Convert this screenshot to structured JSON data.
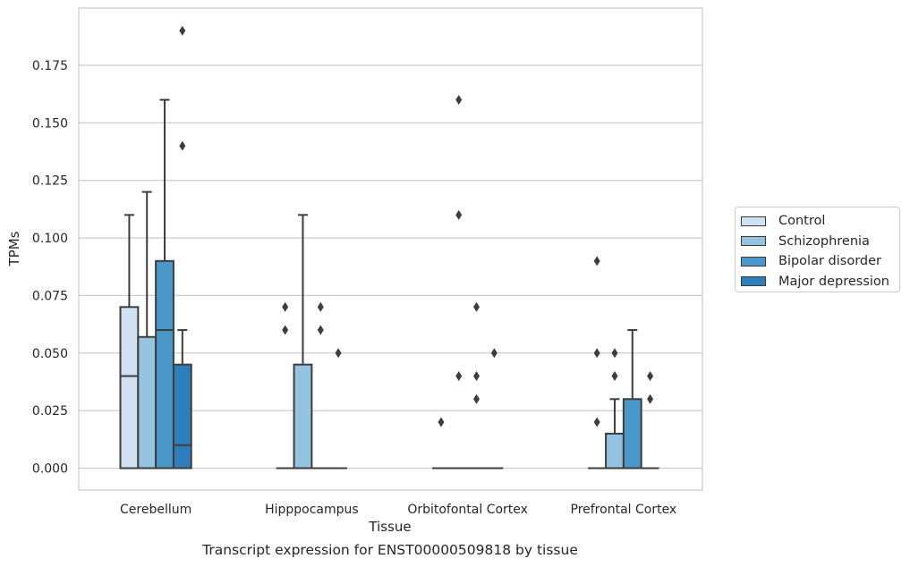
{
  "chart_data": {
    "type": "box",
    "xlabel": "Tissue",
    "ylabel": "TPMs",
    "caption": "Transcript expression for ENST00000509818 by tissue",
    "ylim": [
      -0.009,
      0.198
    ],
    "yticks": [
      "0.000",
      "0.025",
      "0.050",
      "0.075",
      "0.100",
      "0.125",
      "0.150",
      "0.175"
    ],
    "grid": "horizontal",
    "legend_position": "right",
    "categories": [
      "Cerebellum",
      "Hipppocampus",
      "Orbitofontal Cortex",
      "Prefrontal Cortex"
    ],
    "series": [
      {
        "name": "Control",
        "color": "#d0e1f2",
        "boxes": [
          {
            "q1": 0,
            "median": 0.04,
            "q3": 0.07,
            "whisker_low": 0,
            "whisker_high": 0.11,
            "outliers": []
          },
          {
            "q1": 0,
            "median": 0,
            "q3": 0,
            "whisker_low": 0,
            "whisker_high": 0,
            "outliers": [
              0.06,
              0.07
            ]
          },
          {
            "q1": 0,
            "median": 0,
            "q3": 0,
            "whisker_low": 0,
            "whisker_high": 0,
            "outliers": [
              0.02
            ]
          },
          {
            "q1": 0,
            "median": 0,
            "q3": 0,
            "whisker_low": 0,
            "whisker_high": 0,
            "outliers": [
              0.02,
              0.05,
              0.09
            ]
          }
        ]
      },
      {
        "name": "Schizophrenia",
        "color": "#94c4df",
        "boxes": [
          {
            "q1": 0,
            "median": 0,
            "q3": 0.057,
            "whisker_low": 0,
            "whisker_high": 0.12,
            "outliers": []
          },
          {
            "q1": 0,
            "median": 0,
            "q3": 0.045,
            "whisker_low": 0,
            "whisker_high": 0.11,
            "outliers": []
          },
          {
            "q1": 0,
            "median": 0,
            "q3": 0,
            "whisker_low": 0,
            "whisker_high": 0,
            "outliers": [
              0.04,
              0.11,
              0.16
            ]
          },
          {
            "q1": 0,
            "median": 0,
            "q3": 0.015,
            "whisker_low": 0,
            "whisker_high": 0.03,
            "outliers": [
              0.04,
              0.05
            ]
          }
        ]
      },
      {
        "name": "Bipolar disorder",
        "color": "#4a98c9",
        "boxes": [
          {
            "q1": 0,
            "median": 0.06,
            "q3": 0.09,
            "whisker_low": 0,
            "whisker_high": 0.16,
            "outliers": []
          },
          {
            "q1": 0,
            "median": 0,
            "q3": 0,
            "whisker_low": 0,
            "whisker_high": 0,
            "outliers": [
              0.06,
              0.07
            ]
          },
          {
            "q1": 0,
            "median": 0,
            "q3": 0,
            "whisker_low": 0,
            "whisker_high": 0,
            "outliers": [
              0.03,
              0.04,
              0.07
            ]
          },
          {
            "q1": 0,
            "median": 0,
            "q3": 0.03,
            "whisker_low": 0,
            "whisker_high": 0.06,
            "outliers": []
          }
        ]
      },
      {
        "name": "Major depression",
        "color": "#2e7ebc",
        "boxes": [
          {
            "q1": 0,
            "median": 0.01,
            "q3": 0.045,
            "whisker_low": 0,
            "whisker_high": 0.06,
            "outliers": [
              0.14,
              0.19
            ]
          },
          {
            "q1": 0,
            "median": 0,
            "q3": 0,
            "whisker_low": 0,
            "whisker_high": 0,
            "outliers": [
              0.05
            ]
          },
          {
            "q1": 0,
            "median": 0,
            "q3": 0,
            "whisker_low": 0,
            "whisker_high": 0,
            "outliers": [
              0.05
            ]
          },
          {
            "q1": 0,
            "median": 0,
            "q3": 0,
            "whisker_low": 0,
            "whisker_high": 0,
            "outliers": [
              0.03,
              0.04
            ]
          }
        ]
      }
    ]
  }
}
